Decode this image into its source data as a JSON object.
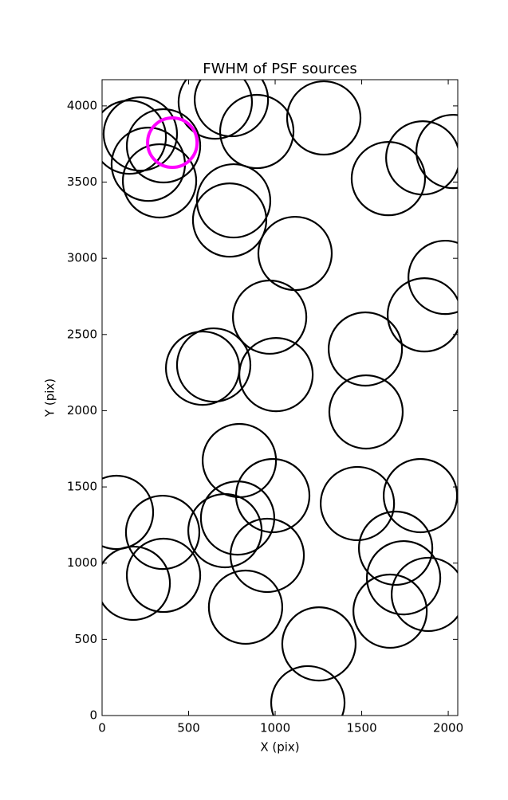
{
  "chart_data": {
    "type": "scatter",
    "title": "FWHM of PSF sources",
    "x_label": "X (pix)",
    "y_label": "Y (pix)",
    "xlim": [
      0,
      2055
    ],
    "ylim": [
      0,
      4172
    ],
    "xticks": [
      0,
      500,
      1000,
      1500,
      2000
    ],
    "yticks": [
      0,
      500,
      1000,
      1500,
      2000,
      2500,
      3000,
      3500,
      4000
    ],
    "grid": false,
    "series": [
      {
        "color": "#000000",
        "marker_radius": 212,
        "x": [
          157,
          221,
          267,
          332,
          355,
          654,
          747,
          894,
          1281,
          760,
          737,
          1115,
          1654,
          1853,
          2028,
          1982,
          1862,
          968,
          1521,
          581,
          645,
          1005,
          1525,
          793,
          986,
          83,
          350,
          710,
          783,
          954,
          1475,
          1839,
          1696,
          1742,
          1664,
          1885,
          180,
          355,
          829,
          1253,
          1189
        ],
        "values": [
          3795,
          3816,
          3617,
          3508,
          3738,
          4025,
          4041,
          3832,
          3921,
          3377,
          3251,
          3032,
          3523,
          3659,
          3701,
          2875,
          2629,
          2614,
          2405,
          2279,
          2300,
          2237,
          1992,
          1673,
          1443,
          1333,
          1202,
          1213,
          1296,
          1051,
          1391,
          1443,
          1098,
          904,
          685,
          795,
          868,
          920,
          711,
          470,
          84
        ]
      },
      {
        "color": "#ff00ff",
        "marker_radius": 143,
        "x": [
          406
        ],
        "values": [
          3759
        ]
      }
    ]
  }
}
